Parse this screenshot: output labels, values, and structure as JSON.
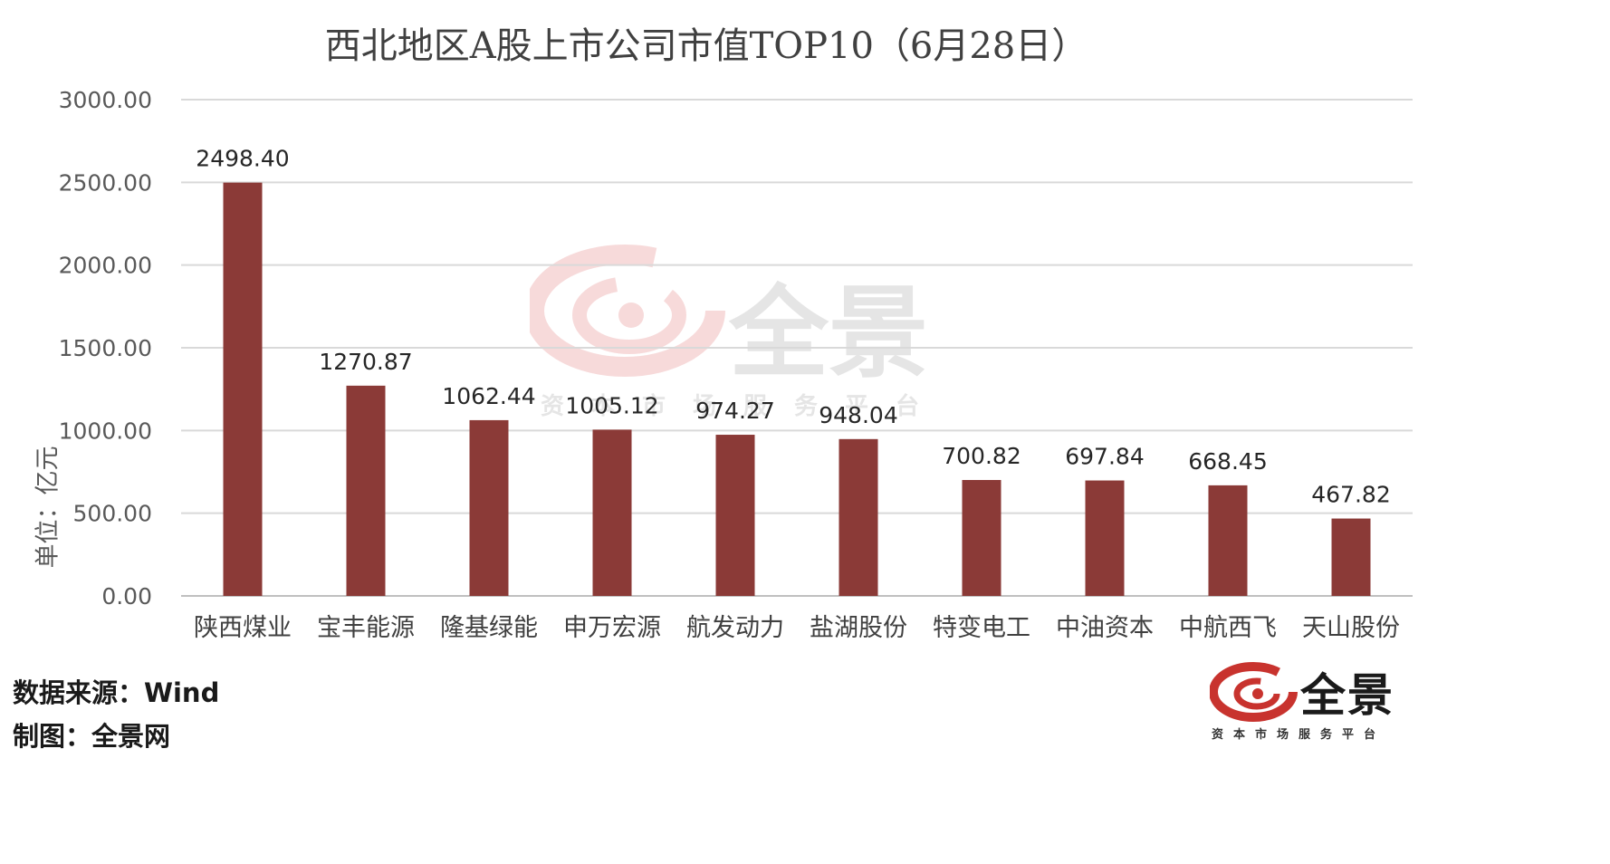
{
  "chart_data": {
    "type": "bar",
    "title": "西北地区A股上市公司市值TOP10（6月28日）",
    "ylabel": "单位：亿元",
    "categories": [
      "陕西煤业",
      "宝丰能源",
      "隆基绿能",
      "申万宏源",
      "航发动力",
      "盐湖股份",
      "特变电工",
      "中油资本",
      "中航西飞",
      "天山股份"
    ],
    "values": [
      2498.4,
      1270.87,
      1062.44,
      1005.12,
      974.27,
      948.04,
      700.82,
      697.84,
      668.45,
      467.82
    ],
    "value_labels": [
      "2498.40",
      "1270.87",
      "1062.44",
      "1005.12",
      "974.27",
      "948.04",
      "700.82",
      "697.84",
      "668.45",
      "467.82"
    ],
    "yticks": [
      "0.00",
      "500.00",
      "1000.00",
      "1500.00",
      "2000.00",
      "2500.00",
      "3000.00"
    ],
    "ylim": [
      0,
      3000
    ],
    "grid": true,
    "bar_color": "#8b3a37"
  },
  "source": "数据来源：Wind",
  "maker": "制图：全景网",
  "logo": {
    "name": "全景",
    "tagline": "资本市场服务平台"
  },
  "watermark": {
    "name": "全景",
    "tagline": "资本市场服务平台"
  }
}
